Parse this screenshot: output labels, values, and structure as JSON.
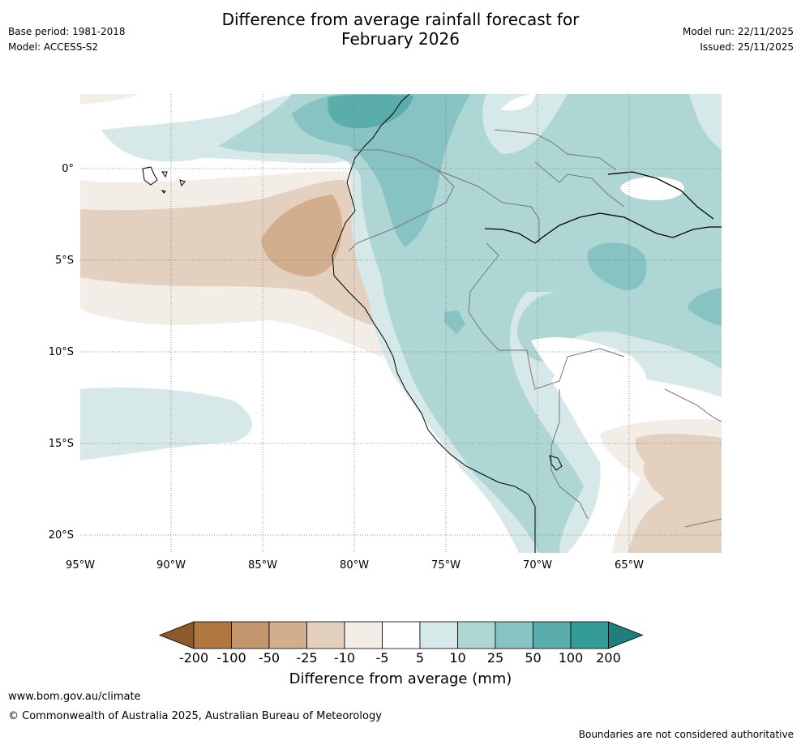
{
  "title": {
    "line1": "Difference from average rainfall forecast for",
    "line2": "February 2026"
  },
  "header_left": {
    "base_period": "Base period: 1981-2018",
    "model": "Model: ACCESS-S2"
  },
  "header_right": {
    "model_run": "Model run: 22/11/2025",
    "issued": "Issued: 25/11/2025"
  },
  "map": {
    "lon_labels": [
      "95°W",
      "90°W",
      "85°W",
      "80°W",
      "75°W",
      "70°W",
      "65°W"
    ],
    "lat_labels": [
      "0°",
      "5°S",
      "10°S",
      "15°S",
      "20°S"
    ]
  },
  "colorbar": {
    "title": "Difference from average (mm)",
    "tick_labels": [
      "-200",
      "-100",
      "-50",
      "-25",
      "-10",
      "-5",
      "5",
      "10",
      "25",
      "50",
      "100",
      "200"
    ],
    "colors": [
      "#8c5a2b",
      "#b07840",
      "#c3956c",
      "#d3ae8e",
      "#e3d0bf",
      "#f2ede7",
      "#ffffff",
      "#d6e9e8",
      "#aed6d5",
      "#86c3c2",
      "#5aadab",
      "#359b98",
      "#1f7f7c"
    ]
  },
  "footer": {
    "url": "www.bom.gov.au/climate",
    "copyright": "© Commonwealth of Australia 2025, Australian Bureau of Meteorology",
    "disclaimer": "Boundaries are not considered authoritative"
  }
}
